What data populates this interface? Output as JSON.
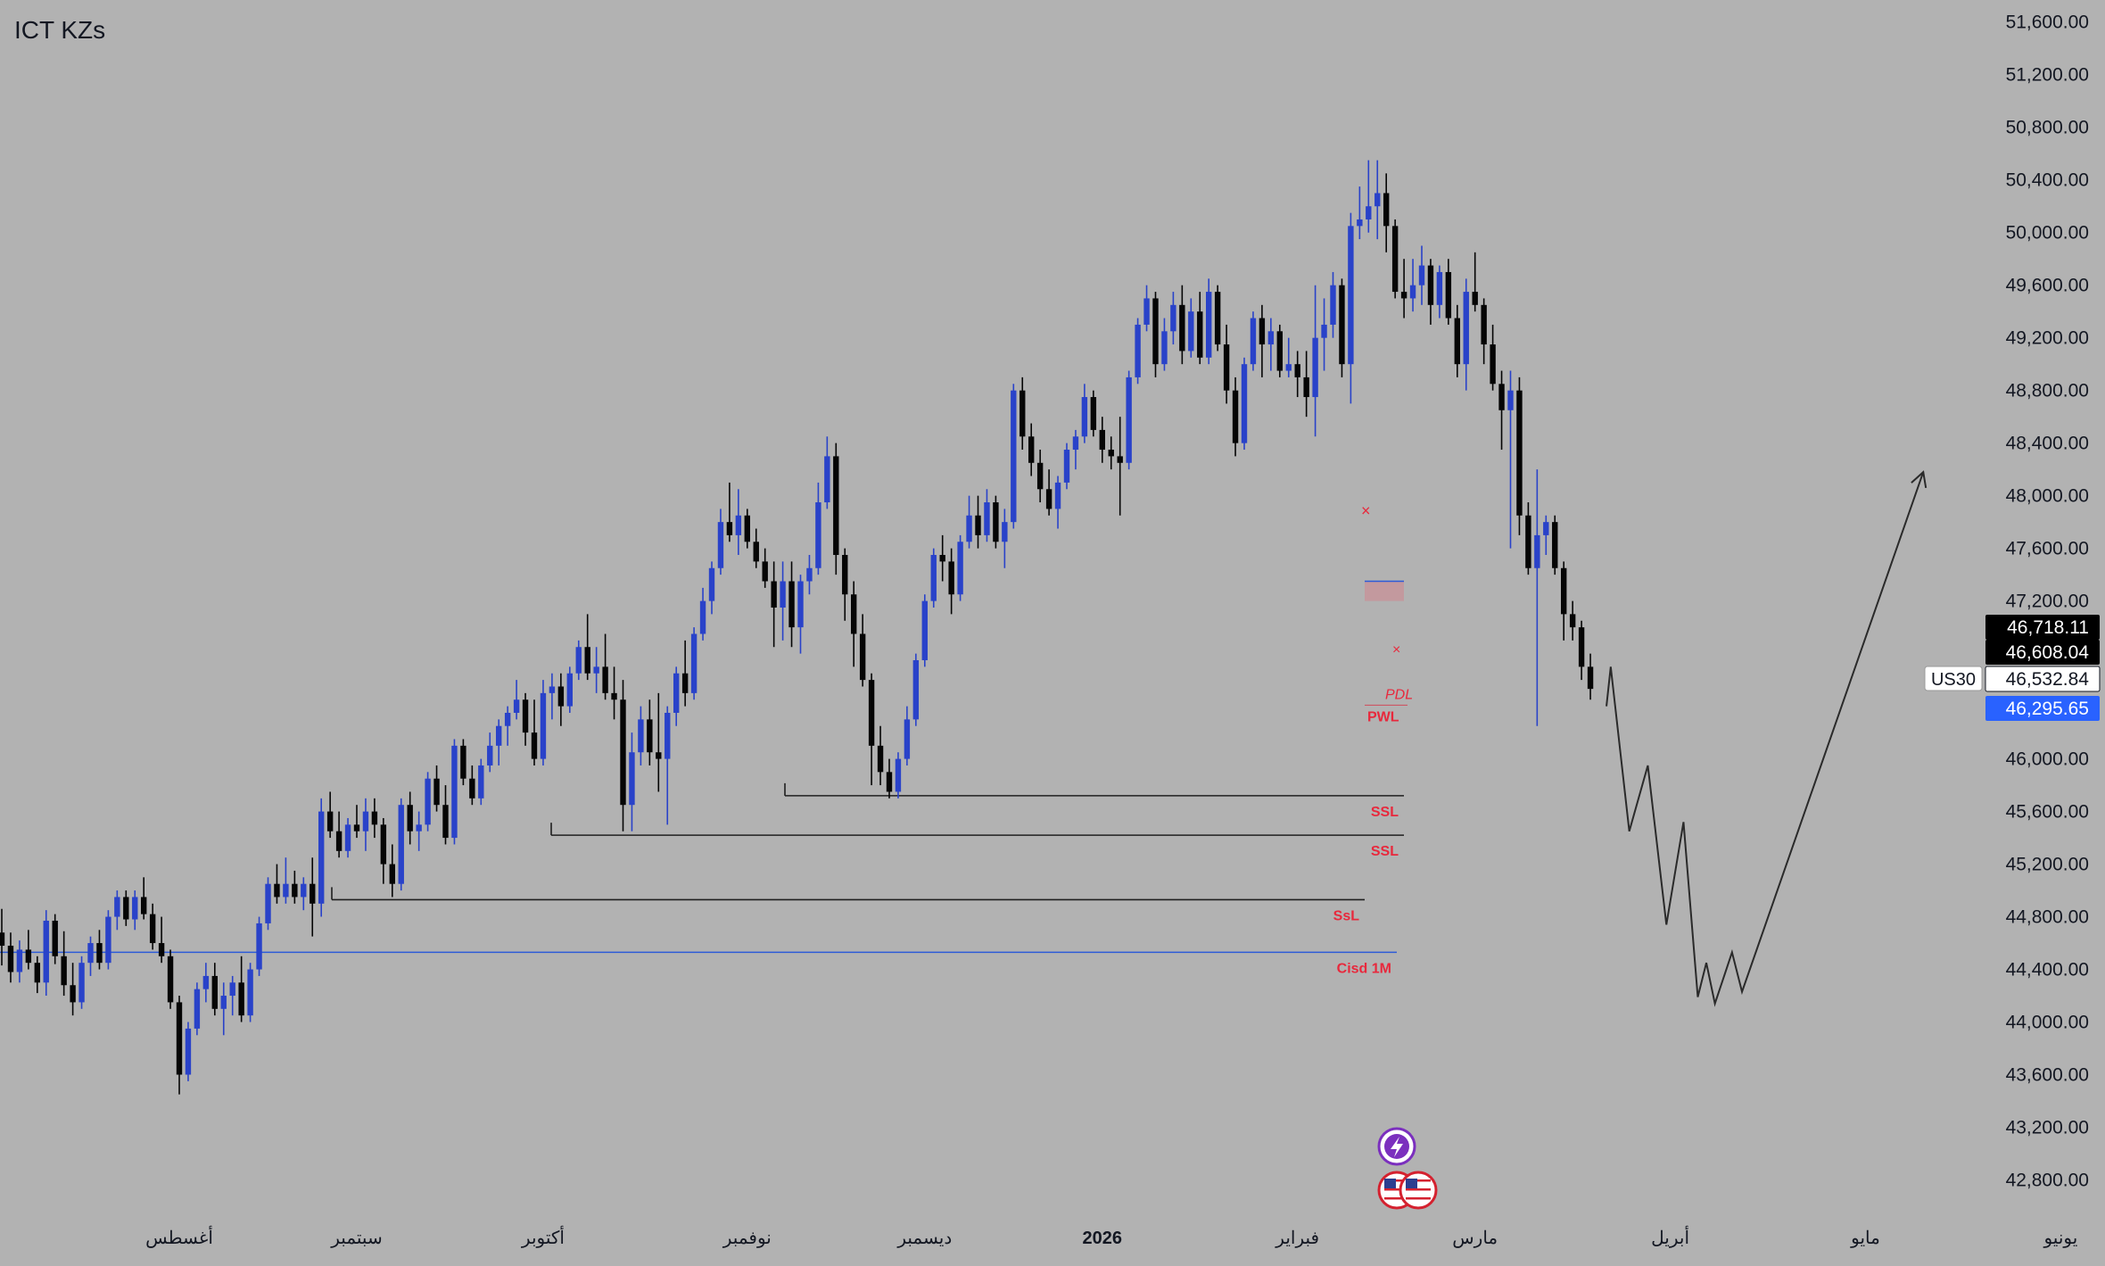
{
  "app": {
    "title": "ICT KZs",
    "symbol": "US30"
  },
  "price_tags": {
    "tag1": "46,718.11",
    "tag2": "46,608.04",
    "tag3": "46,532.84",
    "tag4": "46,295.65"
  },
  "colors": {
    "background": "#b2b2b2",
    "bull": "#2942c9",
    "bear": "#050505",
    "level_line": "#1f1f1f",
    "cisd_line": "#2d5bd8",
    "label_red": "#e8283c",
    "tag_black": "#000000",
    "tag_white": "#ffffff",
    "tag_blue": "#2962ff",
    "event_purple": "#7b2fbe"
  },
  "chart_data": {
    "type": "candlestick",
    "title": "ICT KZs",
    "symbol": "US30",
    "y_axis": {
      "min": 42600,
      "max": 51700,
      "ticks": [
        "51,600.00",
        "51,200.00",
        "50,800.00",
        "50,400.00",
        "50,000.00",
        "49,600.00",
        "49,200.00",
        "48,800.00",
        "48,400.00",
        "48,000.00",
        "47,600.00",
        "47,200.00",
        "46,800.00",
        "46,400.00",
        "46,000.00",
        "45,600.00",
        "45,200.00",
        "44,800.00",
        "44,400.00",
        "44,000.00",
        "43,600.00",
        "43,200.00",
        "42,800.00"
      ],
      "tick_values": [
        51600,
        51200,
        50800,
        50400,
        50000,
        49600,
        49200,
        48800,
        48400,
        48000,
        47600,
        47200,
        46800,
        46400,
        46000,
        45600,
        45200,
        44800,
        44400,
        44000,
        43600,
        43200,
        42800
      ]
    },
    "x_axis": {
      "labels": [
        "أغسطس",
        "سبتمبر",
        "أكتوبر",
        "نوفمبر",
        "ديسمبر",
        "2026",
        "فبراير",
        "مارس",
        "أبريل",
        "مايو",
        "يونيو"
      ],
      "label_bar_index": [
        20,
        40,
        61,
        84,
        104,
        124,
        146,
        166,
        188,
        210,
        232
      ],
      "bold": [
        false,
        false,
        false,
        false,
        false,
        true,
        false,
        false,
        false,
        false,
        false
      ]
    },
    "candles_ohlc": [
      [
        44680,
        44860,
        44430,
        44580
      ],
      [
        44580,
        44680,
        44300,
        44380
      ],
      [
        44380,
        44620,
        44300,
        44550
      ],
      [
        44550,
        44700,
        44400,
        44450
      ],
      [
        44450,
        44500,
        44220,
        44300
      ],
      [
        44300,
        44850,
        44200,
        44770
      ],
      [
        44770,
        44820,
        44440,
        44500
      ],
      [
        44500,
        44690,
        44200,
        44280
      ],
      [
        44280,
        44450,
        44050,
        44150
      ],
      [
        44150,
        44500,
        44100,
        44450
      ],
      [
        44450,
        44650,
        44350,
        44600
      ],
      [
        44600,
        44700,
        44400,
        44450
      ],
      [
        44450,
        44850,
        44400,
        44800
      ],
      [
        44800,
        45000,
        44700,
        44950
      ],
      [
        44950,
        45000,
        44730,
        44780
      ],
      [
        44780,
        45000,
        44700,
        44950
      ],
      [
        44950,
        45100,
        44780,
        44820
      ],
      [
        44820,
        44900,
        44550,
        44600
      ],
      [
        44600,
        44800,
        44450,
        44500
      ],
      [
        44500,
        44550,
        44100,
        44150
      ],
      [
        44150,
        44200,
        43450,
        43600
      ],
      [
        43600,
        44000,
        43550,
        43950
      ],
      [
        43950,
        44300,
        43900,
        44250
      ],
      [
        44250,
        44450,
        44150,
        44350
      ],
      [
        44350,
        44450,
        44050,
        44100
      ],
      [
        44100,
        44300,
        43900,
        44200
      ],
      [
        44200,
        44350,
        44050,
        44300
      ],
      [
        44300,
        44500,
        44000,
        44050
      ],
      [
        44050,
        44450,
        44000,
        44400
      ],
      [
        44400,
        44800,
        44350,
        44750
      ],
      [
        44750,
        45100,
        44700,
        45050
      ],
      [
        45050,
        45200,
        44900,
        44950
      ],
      [
        44950,
        45250,
        44900,
        45050
      ],
      [
        45050,
        45150,
        44900,
        44950
      ],
      [
        44950,
        45100,
        44850,
        45050
      ],
      [
        45050,
        45250,
        44650,
        44900
      ],
      [
        44900,
        45700,
        44800,
        45600
      ],
      [
        45600,
        45750,
        45400,
        45450
      ],
      [
        45450,
        45600,
        45250,
        45300
      ],
      [
        45300,
        45550,
        45250,
        45500
      ],
      [
        45500,
        45650,
        45400,
        45450
      ],
      [
        45450,
        45700,
        45300,
        45600
      ],
      [
        45600,
        45700,
        45400,
        45500
      ],
      [
        45500,
        45550,
        45050,
        45200
      ],
      [
        45200,
        45350,
        44950,
        45050
      ],
      [
        45050,
        45700,
        45000,
        45650
      ],
      [
        45650,
        45750,
        45350,
        45450
      ],
      [
        45450,
        45600,
        45300,
        45500
      ],
      [
        45500,
        45900,
        45450,
        45850
      ],
      [
        45850,
        45950,
        45600,
        45650
      ],
      [
        45650,
        45800,
        45350,
        45400
      ],
      [
        45400,
        46150,
        45350,
        46100
      ],
      [
        46100,
        46150,
        45800,
        45850
      ],
      [
        45850,
        45950,
        45650,
        45700
      ],
      [
        45700,
        46000,
        45650,
        45950
      ],
      [
        45950,
        46200,
        45900,
        46100
      ],
      [
        46100,
        46300,
        45950,
        46250
      ],
      [
        46250,
        46400,
        46100,
        46350
      ],
      [
        46350,
        46600,
        46300,
        46450
      ],
      [
        46450,
        46500,
        46100,
        46200
      ],
      [
        46200,
        46450,
        45950,
        46000
      ],
      [
        46000,
        46600,
        45950,
        46500
      ],
      [
        46500,
        46650,
        46300,
        46550
      ],
      [
        46550,
        46650,
        46250,
        46400
      ],
      [
        46400,
        46700,
        46350,
        46650
      ],
      [
        46650,
        46900,
        46600,
        46850
      ],
      [
        46850,
        47100,
        46600,
        46650
      ],
      [
        46650,
        46850,
        46500,
        46700
      ],
      [
        46700,
        46950,
        46450,
        46500
      ],
      [
        46500,
        46700,
        46300,
        46450
      ],
      [
        46450,
        46600,
        45450,
        45650
      ],
      [
        45650,
        46200,
        45450,
        46050
      ],
      [
        46050,
        46400,
        45950,
        46300
      ],
      [
        46300,
        46450,
        45950,
        46050
      ],
      [
        46050,
        46500,
        45750,
        46000
      ],
      [
        46000,
        46400,
        45500,
        46350
      ],
      [
        46350,
        46700,
        46250,
        46650
      ],
      [
        46650,
        46900,
        46400,
        46500
      ],
      [
        46500,
        47000,
        46450,
        46950
      ],
      [
        46950,
        47300,
        46900,
        47200
      ],
      [
        47200,
        47500,
        47100,
        47450
      ],
      [
        47450,
        47900,
        47400,
        47800
      ],
      [
        47800,
        48100,
        47650,
        47700
      ],
      [
        47700,
        48050,
        47550,
        47850
      ],
      [
        47850,
        47900,
        47600,
        47650
      ],
      [
        47650,
        47750,
        47450,
        47500
      ],
      [
        47500,
        47600,
        47300,
        47350
      ],
      [
        47350,
        47500,
        46850,
        47150
      ],
      [
        47150,
        47500,
        46900,
        47350
      ],
      [
        47350,
        47500,
        46850,
        47000
      ],
      [
        47000,
        47400,
        46800,
        47350
      ],
      [
        47350,
        47550,
        47250,
        47450
      ],
      [
        47450,
        48100,
        47400,
        47950
      ],
      [
        47950,
        48450,
        47900,
        48300
      ],
      [
        48300,
        48400,
        47400,
        47550
      ],
      [
        47550,
        47600,
        47050,
        47250
      ],
      [
        47250,
        47350,
        46700,
        46950
      ],
      [
        46950,
        47100,
        46550,
        46600
      ],
      [
        46600,
        46650,
        45800,
        46100
      ],
      [
        46100,
        46250,
        45800,
        45900
      ],
      [
        45900,
        46000,
        45700,
        45750
      ],
      [
        45750,
        46050,
        45700,
        46000
      ],
      [
        46000,
        46400,
        45950,
        46300
      ],
      [
        46300,
        46800,
        46250,
        46750
      ],
      [
        46750,
        47250,
        46700,
        47200
      ],
      [
        47200,
        47600,
        47150,
        47550
      ],
      [
        47550,
        47700,
        47350,
        47500
      ],
      [
        47500,
        47600,
        47100,
        47250
      ],
      [
        47250,
        47700,
        47200,
        47650
      ],
      [
        47650,
        48000,
        47600,
        47850
      ],
      [
        47850,
        48000,
        47600,
        47700
      ],
      [
        47700,
        48050,
        47650,
        47950
      ],
      [
        47950,
        48000,
        47600,
        47650
      ],
      [
        47650,
        47900,
        47450,
        47800
      ],
      [
        47800,
        48850,
        47750,
        48800
      ],
      [
        48800,
        48900,
        48350,
        48450
      ],
      [
        48450,
        48550,
        48150,
        48250
      ],
      [
        48250,
        48350,
        47950,
        48050
      ],
      [
        48050,
        48200,
        47850,
        47900
      ],
      [
        47900,
        48150,
        47750,
        48100
      ],
      [
        48100,
        48400,
        48050,
        48350
      ],
      [
        48350,
        48500,
        48200,
        48450
      ],
      [
        48450,
        48850,
        48400,
        48750
      ],
      [
        48750,
        48800,
        48450,
        48500
      ],
      [
        48500,
        48600,
        48250,
        48350
      ],
      [
        48350,
        48450,
        48200,
        48300
      ],
      [
        48300,
        48600,
        47850,
        48250
      ],
      [
        48250,
        48950,
        48200,
        48900
      ],
      [
        48900,
        49350,
        48850,
        49300
      ],
      [
        49300,
        49600,
        49250,
        49500
      ],
      [
        49500,
        49550,
        48900,
        49000
      ],
      [
        49000,
        49350,
        48950,
        49250
      ],
      [
        49250,
        49550,
        49150,
        49450
      ],
      [
        49450,
        49600,
        49000,
        49100
      ],
      [
        49100,
        49500,
        49050,
        49400
      ],
      [
        49400,
        49550,
        49000,
        49050
      ],
      [
        49050,
        49650,
        49000,
        49550
      ],
      [
        49550,
        49600,
        49100,
        49150
      ],
      [
        49150,
        49300,
        48700,
        48800
      ],
      [
        48800,
        48900,
        48300,
        48400
      ],
      [
        48400,
        49050,
        48350,
        49000
      ],
      [
        49000,
        49400,
        48950,
        49350
      ],
      [
        49350,
        49450,
        48900,
        49150
      ],
      [
        49150,
        49350,
        48950,
        49250
      ],
      [
        49250,
        49300,
        48900,
        48950
      ],
      [
        48950,
        49200,
        48900,
        49000
      ],
      [
        49000,
        49100,
        48750,
        48900
      ],
      [
        48900,
        49100,
        48600,
        48750
      ],
      [
        48750,
        49600,
        48450,
        49200
      ],
      [
        49200,
        49500,
        48950,
        49300
      ],
      [
        49300,
        49700,
        49200,
        49600
      ],
      [
        49600,
        49650,
        48900,
        49000
      ],
      [
        49000,
        50150,
        48700,
        50050
      ],
      [
        50050,
        50350,
        49950,
        50100
      ],
      [
        50100,
        50550,
        50000,
        50200
      ],
      [
        50200,
        50550,
        49950,
        50300
      ],
      [
        50300,
        50450,
        49850,
        50050
      ],
      [
        50050,
        50100,
        49500,
        49550
      ],
      [
        49550,
        49800,
        49350,
        49500
      ],
      [
        49500,
        49800,
        49400,
        49600
      ],
      [
        49600,
        49900,
        49450,
        49750
      ],
      [
        49750,
        49800,
        49300,
        49450
      ],
      [
        49450,
        49750,
        49350,
        49700
      ],
      [
        49700,
        49800,
        49300,
        49350
      ],
      [
        49350,
        49450,
        48900,
        49000
      ],
      [
        49000,
        49650,
        48800,
        49550
      ],
      [
        49550,
        49850,
        49400,
        49450
      ],
      [
        49450,
        49500,
        49000,
        49150
      ],
      [
        49150,
        49300,
        48800,
        48850
      ],
      [
        48850,
        48950,
        48350,
        48650
      ],
      [
        48650,
        48950,
        47600,
        48800
      ],
      [
        48800,
        48900,
        47700,
        47850
      ],
      [
        47850,
        47950,
        47400,
        47450
      ],
      [
        47450,
        48200,
        46250,
        47700
      ],
      [
        47700,
        47850,
        47550,
        47800
      ],
      [
        47800,
        47850,
        47400,
        47450
      ],
      [
        47450,
        47500,
        46900,
        47100
      ],
      [
        47100,
        47200,
        46900,
        47000
      ],
      [
        47000,
        47050,
        46600,
        46700
      ],
      [
        46700,
        46800,
        46450,
        46532
      ]
    ],
    "levels": [
      {
        "name": "PWL",
        "value": 46300,
        "style": "label"
      },
      {
        "name": "PDL",
        "value": 46400,
        "style": "label"
      },
      {
        "name": "SSL",
        "value": 45720,
        "style": "line"
      },
      {
        "name": "SSL",
        "value": 45420,
        "style": "line"
      },
      {
        "name": "SsL",
        "value": 44930,
        "style": "line"
      },
      {
        "name": "Cisd 1M",
        "value": 44530,
        "style": "line"
      }
    ],
    "projection_path": [
      [
        46400,
        0
      ],
      [
        46700,
        3
      ],
      [
        45450,
        16
      ],
      [
        45950,
        29
      ],
      [
        44740,
        42
      ],
      [
        45520,
        54
      ],
      [
        44190,
        64
      ],
      [
        44450,
        70
      ],
      [
        44140,
        76
      ],
      [
        44530,
        88
      ],
      [
        44230,
        95
      ],
      [
        48180,
        222
      ]
    ],
    "grid": false
  }
}
